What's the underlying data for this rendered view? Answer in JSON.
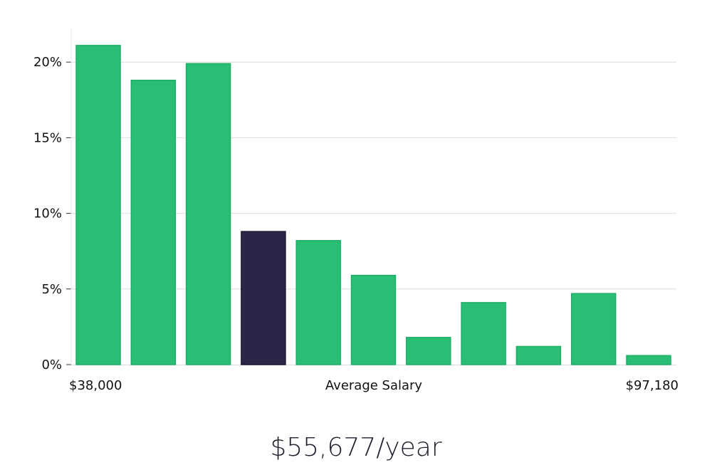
{
  "chart_data": {
    "type": "bar",
    "title": "",
    "xlabel": "Average Salary",
    "ylabel": "",
    "x_min_label": "$38,000",
    "x_max_label": "$97,180",
    "ylim": [
      0,
      22
    ],
    "yticks": [
      0,
      5,
      10,
      15,
      20
    ],
    "ytick_labels": [
      "0%",
      "5%",
      "10%",
      "15%",
      "20%"
    ],
    "grid": true,
    "values": [
      21.1,
      18.8,
      19.9,
      8.8,
      8.2,
      5.9,
      1.8,
      4.1,
      1.2,
      4.7,
      0.6
    ],
    "highlight_index": 3,
    "colors": {
      "bar": "#2abd76",
      "bar_stroke": "#1fae66",
      "highlight": "#2b2647",
      "highlight_stroke": "#1d1936",
      "grid": "#dddddd",
      "text": "#111111"
    }
  },
  "summary": {
    "average_salary": "$55,677/year"
  }
}
